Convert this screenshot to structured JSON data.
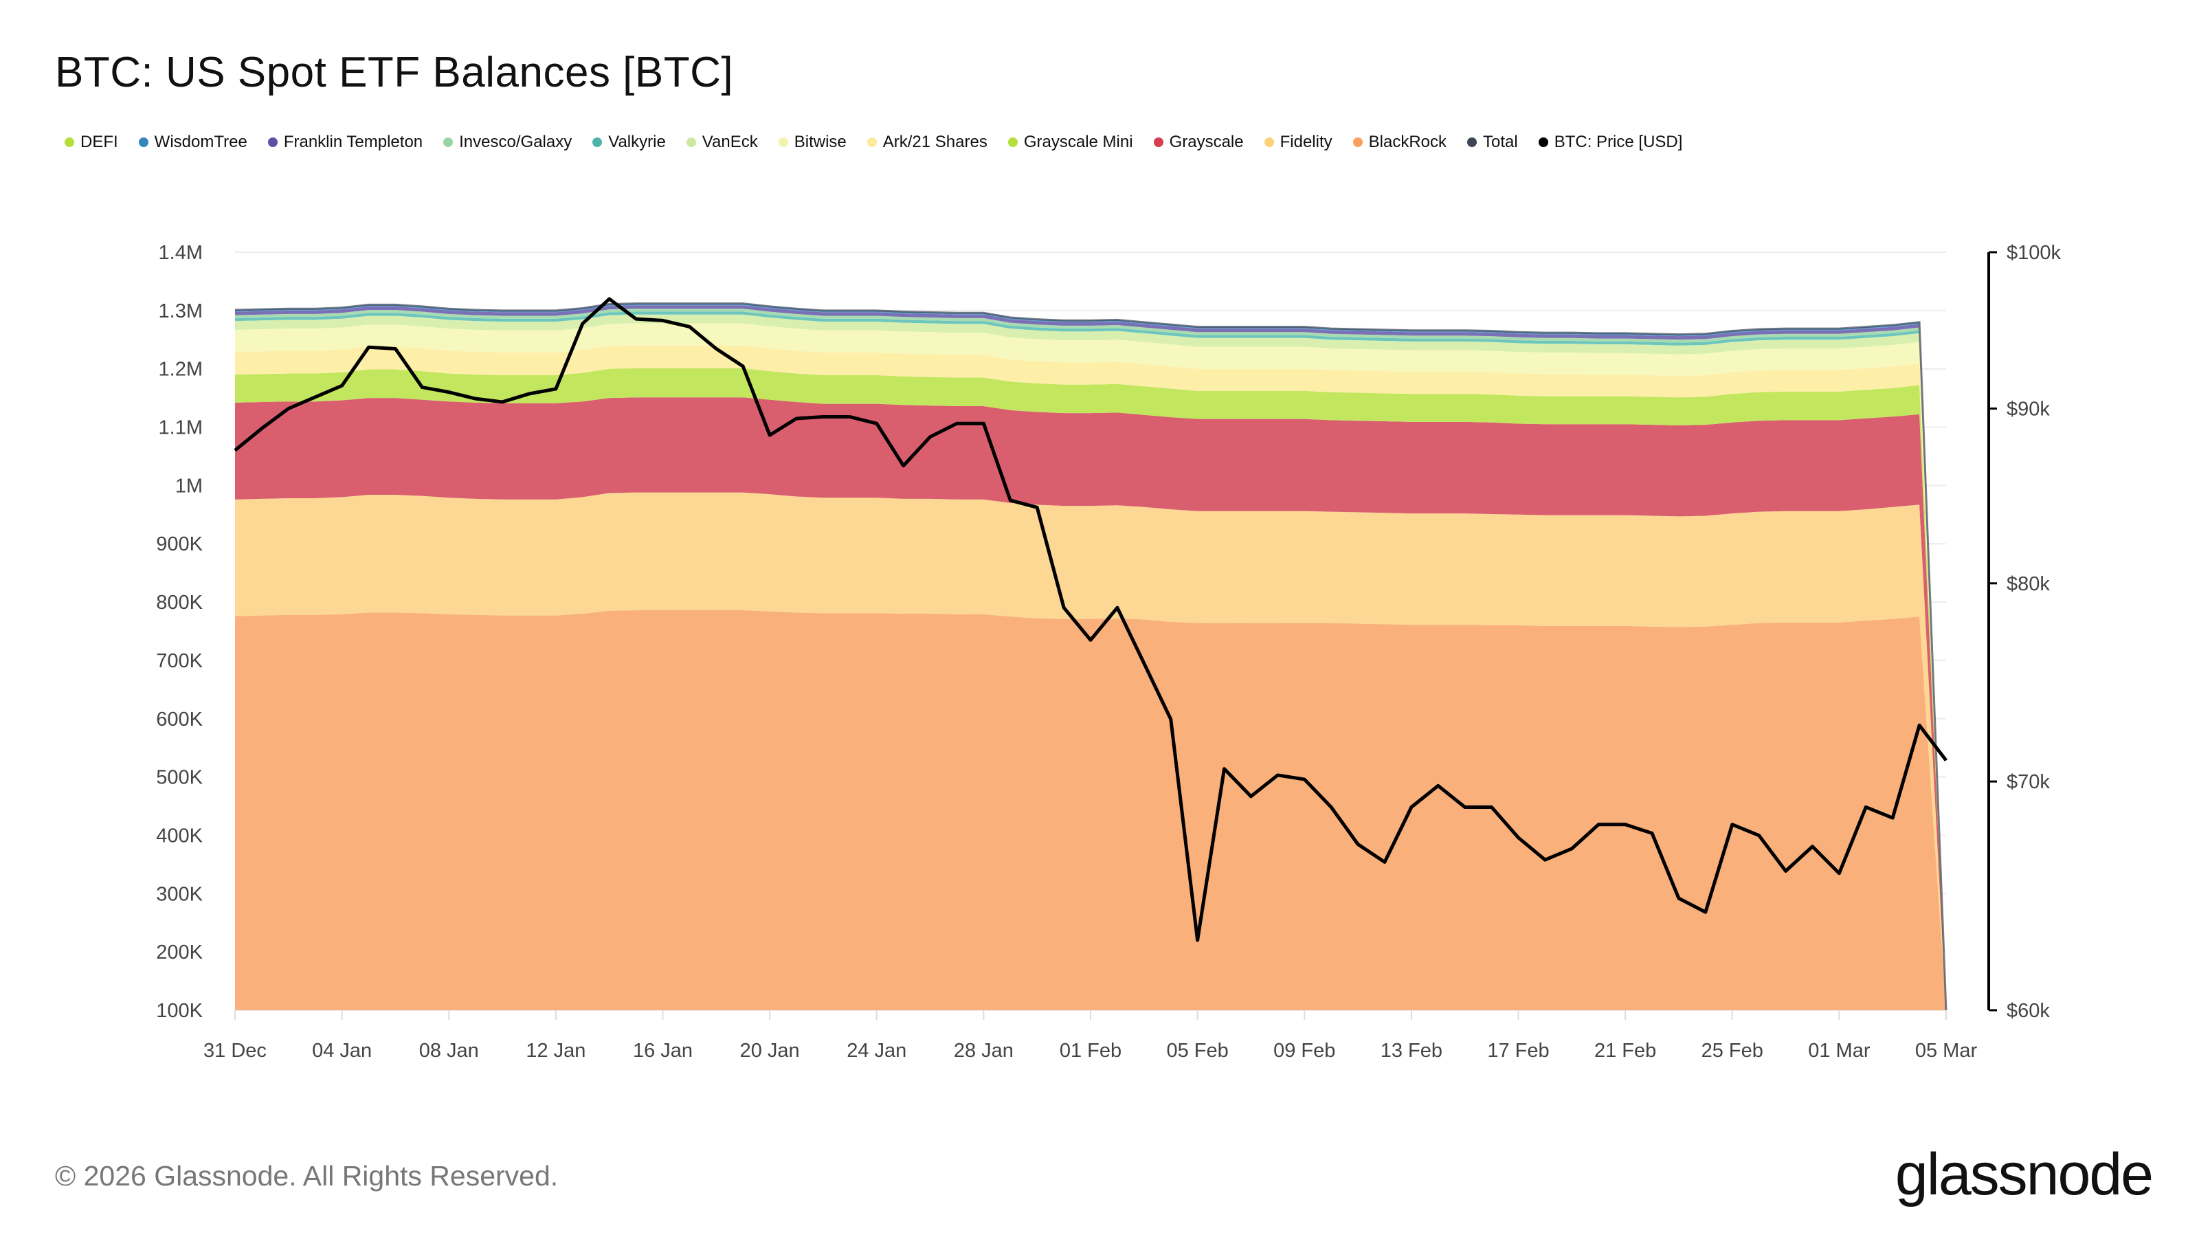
{
  "chart_data": {
    "type": "area",
    "stacked": true,
    "title": "BTC: US Spot ETF Balances [BTC]",
    "x": [
      "2025-12-31",
      "2026-01-01",
      "2026-01-02",
      "2026-01-03",
      "2026-01-04",
      "2026-01-05",
      "2026-01-06",
      "2026-01-07",
      "2026-01-08",
      "2026-01-09",
      "2026-01-10",
      "2026-01-11",
      "2026-01-12",
      "2026-01-13",
      "2026-01-14",
      "2026-01-15",
      "2026-01-16",
      "2026-01-17",
      "2026-01-18",
      "2026-01-19",
      "2026-01-20",
      "2026-01-21",
      "2026-01-22",
      "2026-01-23",
      "2026-01-24",
      "2026-01-25",
      "2026-01-26",
      "2026-01-27",
      "2026-01-28",
      "2026-01-29",
      "2026-01-30",
      "2026-01-31",
      "2026-02-01",
      "2026-02-02",
      "2026-02-03",
      "2026-02-04",
      "2026-02-05",
      "2026-02-06",
      "2026-02-07",
      "2026-02-08",
      "2026-02-09",
      "2026-02-10",
      "2026-02-11",
      "2026-02-12",
      "2026-02-13",
      "2026-02-14",
      "2026-02-15",
      "2026-02-16",
      "2026-02-17",
      "2026-02-18",
      "2026-02-19",
      "2026-02-20",
      "2026-02-21",
      "2026-02-22",
      "2026-02-23",
      "2026-02-24",
      "2026-02-25",
      "2026-02-26",
      "2026-02-27",
      "2026-02-28",
      "2026-03-01",
      "2026-03-02",
      "2026-03-03",
      "2026-03-04",
      "2026-03-05"
    ],
    "x_tick_labels": [
      "31 Dec",
      "04 Jan",
      "08 Jan",
      "12 Jan",
      "16 Jan",
      "20 Jan",
      "24 Jan",
      "28 Jan",
      "01 Feb",
      "05 Feb",
      "09 Feb",
      "13 Feb",
      "17 Feb",
      "21 Feb",
      "25 Feb",
      "01 Mar",
      "05 Mar"
    ],
    "y_left": {
      "tick_labels": [
        "1.4M",
        "1.3M",
        "1.2M",
        "1.1M",
        "1M",
        "900K",
        "800K",
        "700K",
        "600K",
        "500K",
        "400K",
        "300K",
        "200K",
        "100K"
      ],
      "range": [
        100000,
        1400000
      ]
    },
    "y_right": {
      "tick_labels": [
        "$100k",
        "$90k",
        "$80k",
        "$70k",
        "$60k"
      ],
      "range": [
        60000,
        100000
      ],
      "scale": "log"
    },
    "grid": true,
    "legend_position": "top-left",
    "watermark": "glassnode",
    "legend_order": [
      "DEFI",
      "WisdomTree",
      "Franklin Templeton",
      "Invesco/Galaxy",
      "Valkyrie",
      "VanEck",
      "Bitwise",
      "Ark/21 Shares",
      "Grayscale Mini",
      "Grayscale",
      "Fidelity",
      "BlackRock",
      "Total",
      "BTC: Price [USD]"
    ],
    "legend_colors": [
      "#b5e03b",
      "#3288bd",
      "#5e4fa2",
      "#99d5a4",
      "#4db6ac",
      "#cfe8a0",
      "#f3f3b0",
      "#fdeb9b",
      "#b5e03b",
      "#d53e4f",
      "#fdd27a",
      "#f9a05f",
      "#3f4555",
      "#000000"
    ],
    "series": [
      {
        "name": "BlackRock",
        "color": "#f9b07b",
        "values": [
          776000,
          777000,
          778000,
          778000,
          779000,
          782000,
          782000,
          781000,
          779000,
          778000,
          777000,
          777000,
          777000,
          780000,
          785000,
          786000,
          786000,
          786000,
          786000,
          786000,
          784000,
          782000,
          781000,
          781000,
          781000,
          780000,
          780000,
          779000,
          779000,
          775000,
          772000,
          771000,
          771000,
          772000,
          770000,
          766000,
          764000,
          764000,
          764000,
          764000,
          764000,
          764000,
          763000,
          762000,
          761000,
          761000,
          761000,
          760000,
          760000,
          759000,
          759000,
          759000,
          759000,
          758000,
          757000,
          758000,
          761000,
          764000,
          765000,
          765000,
          765000,
          768000,
          771000,
          775000,
          0
        ]
      },
      {
        "name": "Fidelity",
        "color": "#fdd794",
        "values": [
          200000,
          200000,
          200000,
          200000,
          201000,
          202000,
          202000,
          201000,
          200000,
          199000,
          199000,
          199000,
          199000,
          200000,
          202000,
          202000,
          202000,
          202000,
          202000,
          202000,
          201000,
          199000,
          198000,
          198000,
          198000,
          197000,
          197000,
          197000,
          197000,
          195000,
          195000,
          194000,
          194000,
          194000,
          193000,
          193000,
          192000,
          192000,
          192000,
          192000,
          192000,
          191000,
          191000,
          191000,
          191000,
          191000,
          191000,
          191000,
          190000,
          190000,
          190000,
          190000,
          190000,
          190000,
          190000,
          190000,
          191000,
          191000,
          191000,
          191000,
          191000,
          191000,
          192000,
          192000,
          0
        ]
      },
      {
        "name": "Grayscale",
        "color": "#d95f6e",
        "values": [
          166000,
          166000,
          166000,
          166000,
          166000,
          166000,
          166000,
          165000,
          165000,
          165000,
          165000,
          165000,
          165000,
          164000,
          163000,
          163000,
          163000,
          163000,
          163000,
          163000,
          162000,
          162000,
          161000,
          161000,
          161000,
          161000,
          160000,
          160000,
          160000,
          159000,
          159000,
          159000,
          159000,
          159000,
          158000,
          158000,
          158000,
          158000,
          158000,
          158000,
          158000,
          157000,
          157000,
          157000,
          157000,
          157000,
          157000,
          157000,
          156000,
          156000,
          156000,
          156000,
          156000,
          156000,
          156000,
          156000,
          156000,
          156000,
          156000,
          156000,
          156000,
          156000,
          155000,
          155000,
          0
        ]
      },
      {
        "name": "Grayscale Mini",
        "color": "#c3e65f",
        "values": [
          48000,
          48000,
          48000,
          48000,
          48000,
          49000,
          49000,
          49000,
          48000,
          48000,
          48000,
          48000,
          48000,
          49000,
          50000,
          50000,
          50000,
          50000,
          50000,
          50000,
          49000,
          49000,
          49000,
          49000,
          49000,
          49000,
          49000,
          49000,
          49000,
          49000,
          49000,
          49000,
          49000,
          49000,
          49000,
          49000,
          48000,
          48000,
          48000,
          48000,
          48000,
          48000,
          48000,
          48000,
          48000,
          48000,
          48000,
          48000,
          48000,
          48000,
          48000,
          48000,
          48000,
          48000,
          48000,
          48000,
          49000,
          49000,
          49000,
          49000,
          49000,
          49000,
          49000,
          50000,
          0
        ]
      },
      {
        "name": "Ark/21 Shares",
        "color": "#fdeea8",
        "values": [
          39000,
          39000,
          39000,
          39000,
          39000,
          39000,
          39000,
          39000,
          39000,
          39000,
          39000,
          39000,
          39000,
          39000,
          39000,
          39000,
          39000,
          39000,
          39000,
          39000,
          39000,
          39000,
          39000,
          39000,
          39000,
          39000,
          39000,
          39000,
          39000,
          38000,
          38000,
          38000,
          38000,
          38000,
          38000,
          38000,
          38000,
          38000,
          38000,
          38000,
          38000,
          38000,
          38000,
          38000,
          38000,
          38000,
          38000,
          38000,
          38000,
          38000,
          38000,
          37000,
          37000,
          37000,
          37000,
          37000,
          37000,
          37000,
          37000,
          37000,
          37000,
          37000,
          37000,
          37000,
          0
        ]
      },
      {
        "name": "Bitwise",
        "color": "#f6f8bd",
        "values": [
          38000,
          38000,
          38000,
          38000,
          38000,
          38000,
          38000,
          38000,
          38000,
          38000,
          38000,
          38000,
          38000,
          38000,
          38000,
          38000,
          38000,
          38000,
          38000,
          38000,
          38000,
          38000,
          38000,
          38000,
          38000,
          38000,
          38000,
          38000,
          38000,
          38000,
          38000,
          38000,
          38000,
          38000,
          38000,
          38000,
          38000,
          38000,
          38000,
          38000,
          38000,
          37000,
          37000,
          37000,
          37000,
          37000,
          37000,
          37000,
          37000,
          37000,
          37000,
          37000,
          37000,
          37000,
          37000,
          37000,
          37000,
          37000,
          37000,
          37000,
          37000,
          37000,
          37000,
          37000,
          0
        ]
      },
      {
        "name": "VanEck",
        "color": "#d8efb0",
        "values": [
          15000,
          15000,
          15000,
          15000,
          15000,
          15000,
          15000,
          15000,
          15000,
          15000,
          15000,
          15000,
          15000,
          15000,
          15000,
          15000,
          15000,
          15000,
          15000,
          15000,
          15000,
          15000,
          15000,
          15000,
          15000,
          15000,
          15000,
          15000,
          15000,
          15000,
          15000,
          15000,
          15000,
          15000,
          15000,
          15000,
          15000,
          15000,
          15000,
          15000,
          15000,
          15000,
          15000,
          15000,
          15000,
          15000,
          15000,
          15000,
          15000,
          15000,
          15000,
          15000,
          15000,
          15000,
          15000,
          15000,
          15000,
          15000,
          15000,
          15000,
          15000,
          15000,
          15000,
          15000,
          0
        ]
      },
      {
        "name": "Valkyrie",
        "color": "#6cc6bd",
        "values": [
          5000,
          5000,
          5000,
          5000,
          5000,
          5000,
          5000,
          5000,
          5000,
          5000,
          5000,
          5000,
          5000,
          5000,
          5000,
          5000,
          5000,
          5000,
          5000,
          5000,
          5000,
          5000,
          5000,
          5000,
          5000,
          5000,
          5000,
          5000,
          5000,
          5000,
          5000,
          5000,
          5000,
          5000,
          5000,
          5000,
          5000,
          5000,
          5000,
          5000,
          5000,
          5000,
          5000,
          5000,
          5000,
          5000,
          5000,
          5000,
          5000,
          5000,
          5000,
          5000,
          5000,
          5000,
          5000,
          5000,
          5000,
          5000,
          5000,
          5000,
          5000,
          5000,
          5000,
          5000,
          0
        ]
      },
      {
        "name": "Invesco/Galaxy",
        "color": "#a8dcb0",
        "values": [
          5000,
          5000,
          5000,
          5000,
          5000,
          5000,
          5000,
          5000,
          5000,
          5000,
          5000,
          5000,
          5000,
          5000,
          5000,
          5000,
          5000,
          5000,
          5000,
          5000,
          5000,
          5000,
          5000,
          5000,
          5000,
          5000,
          5000,
          5000,
          5000,
          5000,
          5000,
          5000,
          5000,
          5000,
          5000,
          5000,
          5000,
          5000,
          5000,
          5000,
          5000,
          5000,
          5000,
          5000,
          5000,
          5000,
          5000,
          5000,
          5000,
          5000,
          5000,
          5000,
          5000,
          5000,
          5000,
          5000,
          5000,
          5000,
          5000,
          5000,
          5000,
          5000,
          5000,
          5000,
          0
        ]
      },
      {
        "name": "Franklin Templeton",
        "color": "#7b70b5",
        "values": [
          6000,
          6000,
          6000,
          6000,
          6000,
          6000,
          6000,
          6000,
          6000,
          6000,
          6000,
          6000,
          6000,
          6000,
          6000,
          6000,
          6000,
          6000,
          6000,
          6000,
          6000,
          6000,
          6000,
          6000,
          6000,
          6000,
          6000,
          6000,
          6000,
          6000,
          6000,
          6000,
          6000,
          6000,
          6000,
          6000,
          6000,
          6000,
          6000,
          6000,
          6000,
          6000,
          6000,
          6000,
          6000,
          6000,
          6000,
          6000,
          6000,
          6000,
          6000,
          6000,
          6000,
          6000,
          6000,
          6000,
          6000,
          6000,
          6000,
          6000,
          6000,
          6000,
          6000,
          6000,
          0
        ]
      },
      {
        "name": "WisdomTree",
        "color": "#5a9fd0",
        "values": [
          3000,
          3000,
          3000,
          3000,
          3000,
          3000,
          3000,
          3000,
          3000,
          3000,
          3000,
          3000,
          3000,
          3000,
          3000,
          3000,
          3000,
          3000,
          3000,
          3000,
          3000,
          3000,
          3000,
          3000,
          3000,
          3000,
          3000,
          3000,
          3000,
          3000,
          3000,
          3000,
          3000,
          3000,
          3000,
          3000,
          3000,
          3000,
          3000,
          3000,
          3000,
          3000,
          3000,
          3000,
          3000,
          3000,
          3000,
          3000,
          3000,
          3000,
          3000,
          3000,
          3000,
          3000,
          3000,
          3000,
          3000,
          3000,
          3000,
          3000,
          3000,
          3000,
          3000,
          3000,
          0
        ]
      },
      {
        "name": "DEFI",
        "color": "#b5e045",
        "values": [
          0,
          0,
          0,
          0,
          0,
          0,
          0,
          0,
          0,
          0,
          0,
          0,
          0,
          0,
          0,
          0,
          0,
          0,
          0,
          0,
          0,
          0,
          0,
          0,
          0,
          0,
          0,
          0,
          0,
          0,
          0,
          0,
          0,
          0,
          0,
          0,
          0,
          0,
          0,
          0,
          0,
          0,
          0,
          0,
          0,
          0,
          0,
          0,
          0,
          0,
          0,
          0,
          0,
          0,
          0,
          0,
          0,
          0,
          0,
          0,
          0,
          0,
          0,
          0,
          0
        ]
      }
    ],
    "total": {
      "name": "Total",
      "color": "#3f4555"
    },
    "price": {
      "name": "BTC: Price [USD]",
      "color": "#000000",
      "axis": "right",
      "values": [
        87500,
        88800,
        90000,
        90700,
        91400,
        93800,
        93700,
        91300,
        91000,
        90600,
        90400,
        90900,
        91200,
        95300,
        96900,
        95600,
        95500,
        95100,
        93700,
        92600,
        88400,
        89400,
        89500,
        89500,
        89100,
        86600,
        88300,
        89100,
        89100,
        84600,
        84200,
        78700,
        77000,
        78700,
        75800,
        73000,
        62900,
        70600,
        69300,
        70300,
        70100,
        68800,
        67100,
        66300,
        68800,
        69800,
        68800,
        68800,
        67400,
        66400,
        66900,
        68000,
        68000,
        67600,
        64700,
        64100,
        68000,
        67500,
        65900,
        67000,
        65800,
        68800,
        68300,
        72700,
        71000
      ]
    }
  },
  "footer": {
    "copyright": "© 2026 Glassnode. All Rights Reserved.",
    "logo": "glassnode"
  }
}
